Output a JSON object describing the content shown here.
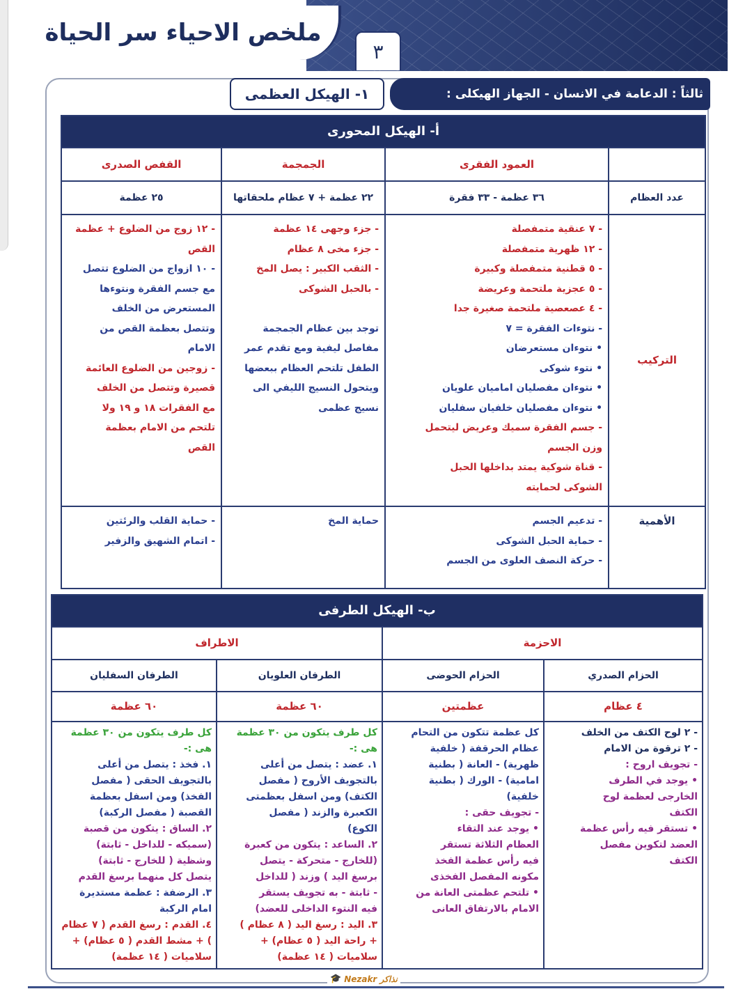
{
  "header": {
    "title": "ملخص الاحياء سر الحياة",
    "page_number": "٣"
  },
  "section": {
    "title": "ثالثاً : الدعامة في الانسان - الجهاز الهيكلى :",
    "subtitle": "١- الهيكل العظمى"
  },
  "axial": {
    "title": "أ- الهيكل المحورى",
    "columns": [
      "العمود الفقرى",
      "الجمجمة",
      "القفص الصدرى"
    ],
    "row_labels": [
      "عدد العظام",
      "التركيب",
      "الأهمية"
    ],
    "counts": [
      "٣٦ عظمة  -  ٣٣ فقرة",
      "٢٢ عظمة + ٧ عظام ملحقاتها",
      "٢٥ عظمة"
    ],
    "structure": [
      [
        {
          "t": "- ٧ عنقية متمفصلة",
          "c": "r"
        },
        {
          "t": "- ١٢ ظهرية متمفصلة",
          "c": "r"
        },
        {
          "t": "- ٥ قطنية متمفصلة وكبيرة",
          "c": "r"
        },
        {
          "t": "- ٥ عجزية ملتحمة وعريضة",
          "c": "r"
        },
        {
          "t": "- ٤ عصعصية ملتحمة صغيرة جدا",
          "c": "r"
        },
        {
          "t": "- نتوءات الفقرة = ٧",
          "c": "b"
        },
        {
          "t": "• نتوءان مستعرضان",
          "c": "b"
        },
        {
          "t": "• نتوء شوكى",
          "c": "b"
        },
        {
          "t": "• نتوءان مفصليان اماميان علويان",
          "c": "b"
        },
        {
          "t": "• نتوءان مفصليان خلفيان سفليان",
          "c": "b"
        },
        {
          "t": "- جسم الفقرة سميك وعريض ليتحمل",
          "c": "r"
        },
        {
          "t": "وزن الجسم",
          "c": "r"
        },
        {
          "t": "- قناة شوكية يمتد بداخلها الحبل",
          "c": "r"
        },
        {
          "t": "الشوكى لحمايته",
          "c": "r"
        }
      ],
      [
        {
          "t": "- جزء وجهى    ١٤ عظمة",
          "c": "r"
        },
        {
          "t": "- جزء مخى     ٨ عظام",
          "c": "r"
        },
        {
          "t": "- الثقب الكبير : يصل المخ",
          "c": "r"
        },
        {
          "t": "- بالحبل الشوكى",
          "c": "r"
        },
        {
          "t": "",
          "c": "b"
        },
        {
          "t": "توجد بين عظام الجمجمة",
          "c": "b"
        },
        {
          "t": "مفاصل ليفية ومع تقدم عمر",
          "c": "b"
        },
        {
          "t": "الطفل تلتحم العظام ببعضها",
          "c": "b"
        },
        {
          "t": "ويتحول النسيج الليفي الى",
          "c": "b"
        },
        {
          "t": "نسيج عظمى",
          "c": "b"
        }
      ],
      [
        {
          "t": "- ١٢ زوج من الضلوع + عظمة",
          "c": "r"
        },
        {
          "t": "القص",
          "c": "r"
        },
        {
          "t": "- ١٠ ازواج من الضلوع تتصل",
          "c": "b"
        },
        {
          "t": "مع جسم الفقرة ونتوءها",
          "c": "b"
        },
        {
          "t": "المستعرض من الخلف",
          "c": "b"
        },
        {
          "t": "وتتصل بعظمة القص من",
          "c": "b"
        },
        {
          "t": "الامام",
          "c": "b"
        },
        {
          "t": "- زوجين من الضلوع العائمة",
          "c": "r"
        },
        {
          "t": "قصيرة وتتصل من الخلف",
          "c": "r"
        },
        {
          "t": "مع الفقرات ١٨ و ١٩ ولا",
          "c": "r"
        },
        {
          "t": "تلتحم من الامام بعظمة",
          "c": "r"
        },
        {
          "t": "القص",
          "c": "r"
        }
      ]
    ],
    "importance": [
      [
        {
          "t": "- تدعيم الجسم",
          "c": "b"
        },
        {
          "t": "- حماية الحبل الشوكى",
          "c": "b"
        },
        {
          "t": "- حركة النصف العلوى من الجسم",
          "c": "b"
        }
      ],
      [
        {
          "t": "حماية المخ",
          "c": "b"
        }
      ],
      [
        {
          "t": "- حماية القلب والرئتين",
          "c": "b"
        },
        {
          "t": "- اتمام الشهيق والزفير",
          "c": "b"
        }
      ]
    ]
  },
  "appendicular": {
    "title": "ب- الهيكل الطرفى",
    "groups": [
      "الاحزمة",
      "الاطراف"
    ],
    "columns": [
      "الحزام الصدري",
      "الحزام الحوضى",
      "الطرفان العلويان",
      "الطرفان السفليان"
    ],
    "counts": [
      "٤ عظام",
      "عظمتين",
      "٦٠ عظمة",
      "٦٠ عظمة"
    ],
    "content": [
      [
        {
          "t": "- ٢ لوح الكتف من الخلف",
          "c": "k"
        },
        {
          "t": "- ٢ ترقوة من الامام",
          "c": "k"
        },
        {
          "t": "- تجويف اروح :",
          "c": "p"
        },
        {
          "t": "• يوجد في الطرف",
          "c": "p"
        },
        {
          "t": "الخارجى لعظمة لوح",
          "c": "p"
        },
        {
          "t": "الكتف",
          "c": "p"
        },
        {
          "t": "• تستقر فيه رأس عظمة",
          "c": "p"
        },
        {
          "t": "العضد لتكوين مفصل",
          "c": "p"
        },
        {
          "t": "الكتف",
          "c": "p"
        }
      ],
      [
        {
          "t": "كل عظمة تتكون من التحام",
          "c": "b"
        },
        {
          "t": "عظام الحرقفة ( خلفية",
          "c": "b"
        },
        {
          "t": "ظهرية) - العانة ( بطنية",
          "c": "b"
        },
        {
          "t": "امامية) - الورك ( بطنية",
          "c": "b"
        },
        {
          "t": "خلفية)",
          "c": "b"
        },
        {
          "t": "- تجويف حقى :",
          "c": "p"
        },
        {
          "t": "• يوجد عند التقاء",
          "c": "p"
        },
        {
          "t": "العظام الثلاثة تستقر",
          "c": "p"
        },
        {
          "t": "فيه رأس عظمة الفخذ",
          "c": "p"
        },
        {
          "t": "مكونه المفصل الفخذى",
          "c": "p"
        },
        {
          "t": "• تلتحم عظمتى العانة من",
          "c": "p"
        },
        {
          "t": "الامام بالارتفاق العانى",
          "c": "p"
        }
      ],
      [
        {
          "t": "كل طرف يتكون من ٣٠ عظمة",
          "c": "g"
        },
        {
          "t": "هى :-",
          "c": "g"
        },
        {
          "t": "١. عضد : يتصل من أعلى",
          "c": "b"
        },
        {
          "t": "بالتجويف الأروح ( مفصل",
          "c": "b"
        },
        {
          "t": "الكتف) ومن اسفل بعظمتى",
          "c": "b"
        },
        {
          "t": "الكعبرة والزند ( مفصل",
          "c": "b"
        },
        {
          "t": "الكوع)",
          "c": "b"
        },
        {
          "t": "٢. الساعد : يتكون من كعبرة",
          "c": "p"
        },
        {
          "t": "(للخارج - متحركة - يتصل",
          "c": "p"
        },
        {
          "t": "برسغ اليد ) وزند ( للداخل",
          "c": "p"
        },
        {
          "t": "- ثابتة - به تجويف يستقر",
          "c": "p"
        },
        {
          "t": "فيه النتوء الداخلى للعضد)",
          "c": "p"
        },
        {
          "t": "٣. اليد : رسغ اليد ( ٨ عظام )",
          "c": "r"
        },
        {
          "t": "+ راحة اليد ( ٥ عظام) +",
          "c": "r"
        },
        {
          "t": "سلاميات ( ١٤ عظمة)",
          "c": "r"
        }
      ],
      [
        {
          "t": "كل طرف يتكون من ٣٠ عظمة",
          "c": "g"
        },
        {
          "t": "هى :-",
          "c": "g"
        },
        {
          "t": "١. فخذ : يتصل من أعلى",
          "c": "b"
        },
        {
          "t": "بالتجويف الحقى ( مفصل",
          "c": "b"
        },
        {
          "t": "الفخذ) ومن اسفل بعظمة",
          "c": "b"
        },
        {
          "t": "القصبة ( مفصل الركبة)",
          "c": "b"
        },
        {
          "t": "٢. الساق : يتكون من قصبة",
          "c": "p"
        },
        {
          "t": "(سميكه - للداخل - ثابتة)",
          "c": "p"
        },
        {
          "t": "وشظية ( للخارج - ثابتة)",
          "c": "p"
        },
        {
          "t": "يتصل كل منهما برسغ القدم",
          "c": "p"
        },
        {
          "t": "٣. الرضفة : عظمة مستديرة",
          "c": "b"
        },
        {
          "t": "امام الركبة",
          "c": "b"
        },
        {
          "t": "٤. القدم : رسغ القدم ( ٧ عظام",
          "c": "r"
        },
        {
          "t": ") + مشط القدم ( ٥ عظام) +",
          "c": "r"
        },
        {
          "t": "سلاميات ( ١٤ عظمة)",
          "c": "r"
        }
      ]
    ]
  },
  "logo": {
    "text": "Nezakr نذاكر"
  }
}
